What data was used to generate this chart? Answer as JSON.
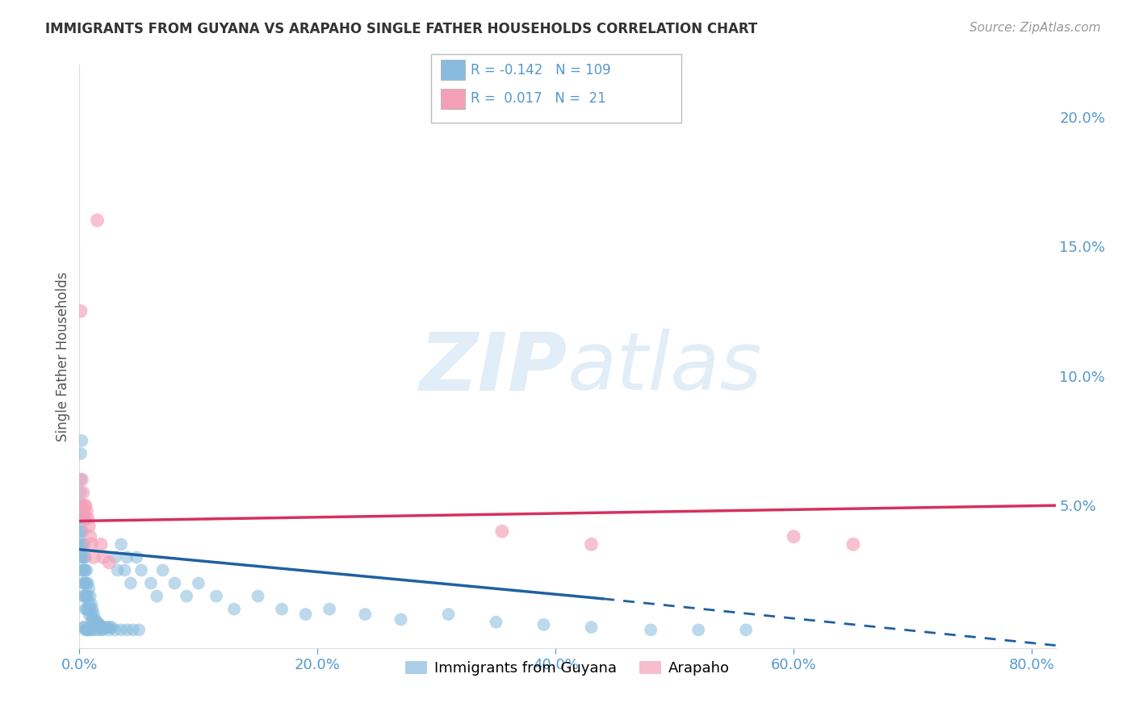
{
  "title": "IMMIGRANTS FROM GUYANA VS ARAPAHO SINGLE FATHER HOUSEHOLDS CORRELATION CHART",
  "source": "Source: ZipAtlas.com",
  "ylabel": "Single Father Households",
  "watermark_zip": "ZIP",
  "watermark_atlas": "atlas",
  "xlim": [
    0.0,
    0.82
  ],
  "ylim": [
    -0.005,
    0.22
  ],
  "yticks": [
    0.05,
    0.1,
    0.15,
    0.2
  ],
  "ytick_labels": [
    "5.0%",
    "10.0%",
    "15.0%",
    "20.0%"
  ],
  "xticks": [
    0.0,
    0.2,
    0.4,
    0.6,
    0.8
  ],
  "xtick_labels": [
    "0.0%",
    "20.0%",
    "40.0%",
    "60.0%",
    "80.0%"
  ],
  "blue_R": -0.142,
  "blue_N": 109,
  "pink_R": 0.017,
  "pink_N": 21,
  "blue_color": "#88bbdd",
  "pink_color": "#f4a0b8",
  "trend_blue_color": "#2060a0",
  "trend_pink_color": "#d63060",
  "background_color": "#ffffff",
  "title_color": "#333333",
  "axis_label_color": "#555555",
  "tick_label_color": "#5599cc",
  "grid_color": "#cccccc",
  "blue_scatter_x": [
    0.001,
    0.001,
    0.001,
    0.001,
    0.001,
    0.001,
    0.002,
    0.002,
    0.002,
    0.002,
    0.002,
    0.002,
    0.003,
    0.003,
    0.003,
    0.003,
    0.003,
    0.003,
    0.003,
    0.004,
    0.004,
    0.004,
    0.004,
    0.004,
    0.005,
    0.005,
    0.005,
    0.005,
    0.005,
    0.006,
    0.006,
    0.006,
    0.006,
    0.007,
    0.007,
    0.007,
    0.008,
    0.008,
    0.008,
    0.009,
    0.009,
    0.01,
    0.01,
    0.01,
    0.011,
    0.011,
    0.012,
    0.012,
    0.013,
    0.014,
    0.015,
    0.015,
    0.016,
    0.017,
    0.018,
    0.019,
    0.02,
    0.022,
    0.024,
    0.025,
    0.027,
    0.03,
    0.032,
    0.035,
    0.038,
    0.04,
    0.043,
    0.048,
    0.052,
    0.06,
    0.065,
    0.07,
    0.08,
    0.09,
    0.1,
    0.115,
    0.13,
    0.15,
    0.17,
    0.19,
    0.21,
    0.24,
    0.27,
    0.31,
    0.35,
    0.39,
    0.43,
    0.48,
    0.52,
    0.56,
    0.003,
    0.004,
    0.005,
    0.006,
    0.007,
    0.008,
    0.01,
    0.012,
    0.015,
    0.018,
    0.02,
    0.025,
    0.03,
    0.035,
    0.04,
    0.045,
    0.05,
    0.001,
    0.002
  ],
  "blue_scatter_y": [
    0.06,
    0.055,
    0.05,
    0.045,
    0.04,
    0.035,
    0.05,
    0.045,
    0.04,
    0.035,
    0.03,
    0.025,
    0.045,
    0.04,
    0.035,
    0.03,
    0.025,
    0.02,
    0.015,
    0.035,
    0.03,
    0.025,
    0.02,
    0.015,
    0.03,
    0.025,
    0.02,
    0.015,
    0.01,
    0.025,
    0.02,
    0.015,
    0.01,
    0.02,
    0.015,
    0.01,
    0.018,
    0.012,
    0.008,
    0.015,
    0.01,
    0.012,
    0.008,
    0.005,
    0.01,
    0.006,
    0.008,
    0.005,
    0.006,
    0.005,
    0.005,
    0.004,
    0.004,
    0.004,
    0.003,
    0.003,
    0.003,
    0.003,
    0.003,
    0.003,
    0.003,
    0.03,
    0.025,
    0.035,
    0.025,
    0.03,
    0.02,
    0.03,
    0.025,
    0.02,
    0.015,
    0.025,
    0.02,
    0.015,
    0.02,
    0.015,
    0.01,
    0.015,
    0.01,
    0.008,
    0.01,
    0.008,
    0.006,
    0.008,
    0.005,
    0.004,
    0.003,
    0.002,
    0.002,
    0.002,
    0.003,
    0.003,
    0.002,
    0.002,
    0.002,
    0.002,
    0.002,
    0.002,
    0.002,
    0.002,
    0.002,
    0.002,
    0.002,
    0.002,
    0.002,
    0.002,
    0.002,
    0.07,
    0.075
  ],
  "pink_scatter_x": [
    0.001,
    0.002,
    0.003,
    0.004,
    0.004,
    0.005,
    0.005,
    0.006,
    0.007,
    0.008,
    0.009,
    0.01,
    0.012,
    0.015,
    0.018,
    0.02,
    0.025,
    0.355,
    0.43,
    0.6,
    0.65
  ],
  "pink_scatter_y": [
    0.125,
    0.06,
    0.055,
    0.05,
    0.048,
    0.05,
    0.045,
    0.048,
    0.045,
    0.042,
    0.038,
    0.035,
    0.03,
    0.16,
    0.035,
    0.03,
    0.028,
    0.04,
    0.035,
    0.038,
    0.035
  ],
  "trend_blue_x0": 0.0,
  "trend_blue_y0": 0.033,
  "trend_blue_x1": 0.44,
  "trend_blue_y1": 0.014,
  "trend_blue_dash_x0": 0.44,
  "trend_blue_dash_y0": 0.014,
  "trend_blue_dash_x1": 0.82,
  "trend_blue_dash_y1": -0.004,
  "trend_pink_x0": 0.0,
  "trend_pink_y0": 0.044,
  "trend_pink_x1": 0.82,
  "trend_pink_y1": 0.05,
  "legend_blue_label": "Immigrants from Guyana",
  "legend_pink_label": "Arapaho"
}
